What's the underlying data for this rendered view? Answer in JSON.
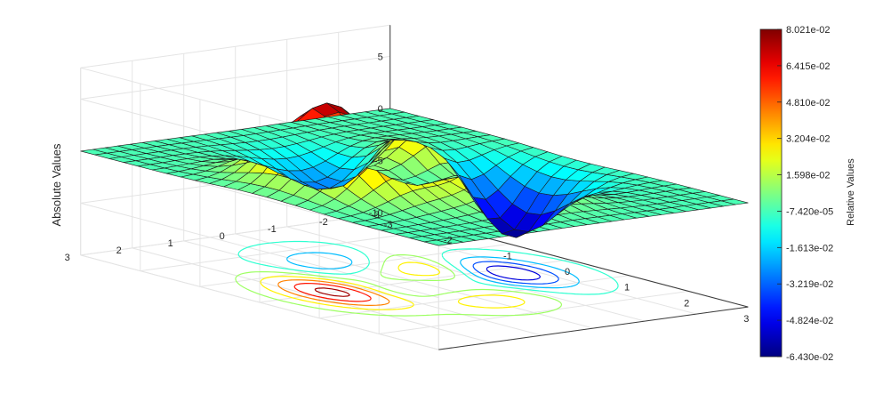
{
  "chart_data": {
    "type": "surface",
    "function": "peaks",
    "zlabel": "Absolute Values",
    "colorbar_label": "Relative Values",
    "x_range": [
      -3,
      3
    ],
    "y_range": [
      -3,
      3
    ],
    "zlim": [
      -10,
      8
    ],
    "grid": "on",
    "mesh": "26x26",
    "x_ticks": [
      "-3",
      "-2",
      "-1",
      "0",
      "1",
      "2",
      "3"
    ],
    "y_ticks": [
      "-3",
      "-2",
      "-1",
      "0",
      "1",
      "2",
      "3"
    ],
    "z_ticks": [
      "-10",
      "-5",
      "0",
      "5"
    ],
    "colorbar_ticks": [
      "8.021e-02",
      "6.415e-02",
      "4.810e-02",
      "3.204e-02",
      "1.598e-02",
      "-7.420e-05",
      "-1.613e-02",
      "-3.219e-02",
      "-4.824e-02",
      "-6.430e-02"
    ],
    "colorbar_range": [
      -0.0643,
      0.08021
    ],
    "contours": "projected on floor",
    "colormap": "jet"
  }
}
